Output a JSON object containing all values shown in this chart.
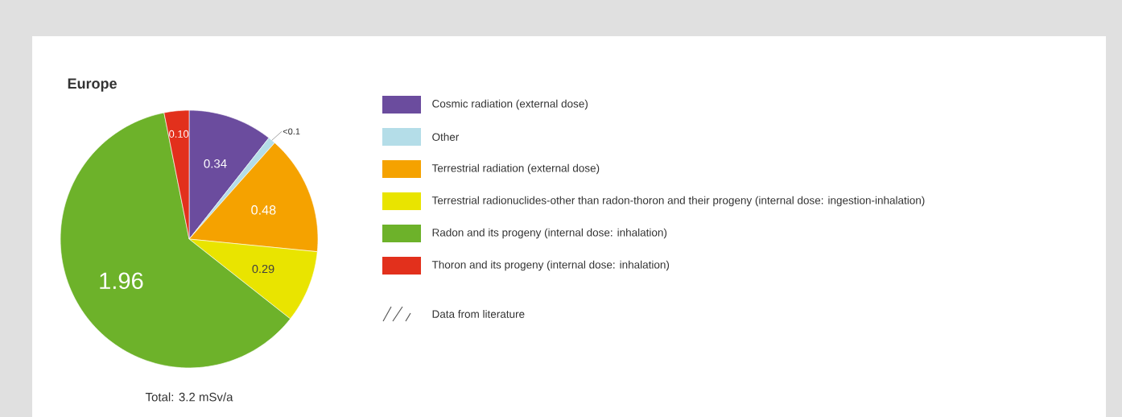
{
  "chart_data": {
    "type": "pie",
    "title": "Europe",
    "categories": [
      "Cosmic radiation (external dose)",
      "Other",
      "Terrestrial radiation (external dose)",
      "Terrestrial radionuclides-other than radon-thoron and their progeny (internal dose: ingestion-inhalation)",
      "Radon and its progeny (internal dose: inhalation)",
      "Thoron and its progeny (internal dose: inhalation)"
    ],
    "values": [
      0.34,
      0.03,
      0.48,
      0.29,
      1.96,
      0.1
    ],
    "value_labels": [
      "0.34",
      "<0.1",
      "0.48",
      "0.29",
      "1.96",
      "0.10"
    ],
    "colors": [
      "#6b4c9e",
      "#b4dde8",
      "#f5a200",
      "#e9e400",
      "#6db22a",
      "#e2301c"
    ],
    "legend": "right",
    "annotations": [
      "Total: 3.2 mSv/a",
      "Data from literature"
    ]
  }
}
